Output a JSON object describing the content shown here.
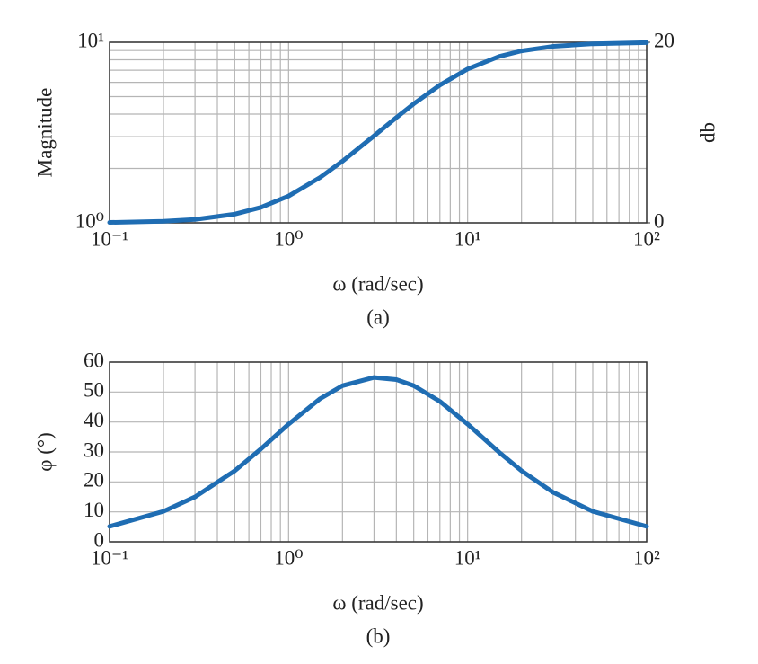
{
  "chart_data": [
    {
      "type": "line",
      "xlog": true,
      "ylog": true,
      "grid": true,
      "minor_grid": true,
      "ylabel": "Magnitude",
      "y2label": "db",
      "xlabel": "ω (rad/sec)",
      "caption": "(a)",
      "x": [
        0.1,
        0.2,
        0.3,
        0.5,
        0.7,
        1,
        1.5,
        2,
        3,
        4,
        5,
        7,
        10,
        15,
        20,
        30,
        50,
        100
      ],
      "series": [
        {
          "color": "#1f6db3",
          "values": [
            1.005,
            1.02,
            1.044,
            1.117,
            1.218,
            1.407,
            1.783,
            2.193,
            3.029,
            3.828,
            4.561,
            5.793,
            7.107,
            8.339,
            8.955,
            9.492,
            9.808,
            9.951
          ]
        }
      ],
      "xlim": [
        0.1,
        100
      ],
      "xticks": [
        {
          "value": 0.1,
          "label": "10⁻¹"
        },
        {
          "value": 1,
          "label": "10⁰"
        },
        {
          "value": 10,
          "label": "10¹"
        },
        {
          "value": 100,
          "label": "10²"
        }
      ],
      "ylim": [
        1,
        10
      ],
      "yticks": [
        {
          "value": 1,
          "label": "10⁰"
        },
        {
          "value": 10,
          "label": "10¹"
        }
      ],
      "y2lim": [
        0,
        20
      ],
      "y2ticks": [
        0,
        20
      ]
    },
    {
      "type": "line",
      "xlog": true,
      "ylog": false,
      "grid": true,
      "minor_grid": true,
      "ylabel": "φ (°)",
      "xlabel": "ω (rad/sec)",
      "caption": "(b)",
      "x": [
        0.1,
        0.2,
        0.3,
        0.5,
        0.7,
        1,
        1.5,
        2,
        3,
        4,
        5,
        7,
        10,
        15,
        20,
        30,
        50,
        100
      ],
      "series": [
        {
          "color": "#1f6db3",
          "values": [
            5.14,
            10.16,
            14.98,
            23.7,
            30.99,
            39.29,
            47.78,
            52.12,
            54.87,
            54.16,
            52.12,
            46.88,
            39.29,
            29.88,
            23.71,
            16.52,
            10.16,
            5.14
          ]
        }
      ],
      "xlim": [
        0.1,
        100
      ],
      "xticks": [
        {
          "value": 0.1,
          "label": "10⁻¹"
        },
        {
          "value": 1,
          "label": "10⁰"
        },
        {
          "value": 10,
          "label": "10¹"
        },
        {
          "value": 100,
          "label": "10²"
        }
      ],
      "ylim": [
        0,
        60
      ],
      "yticks": [
        0,
        10,
        20,
        30,
        40,
        50,
        60
      ]
    }
  ]
}
